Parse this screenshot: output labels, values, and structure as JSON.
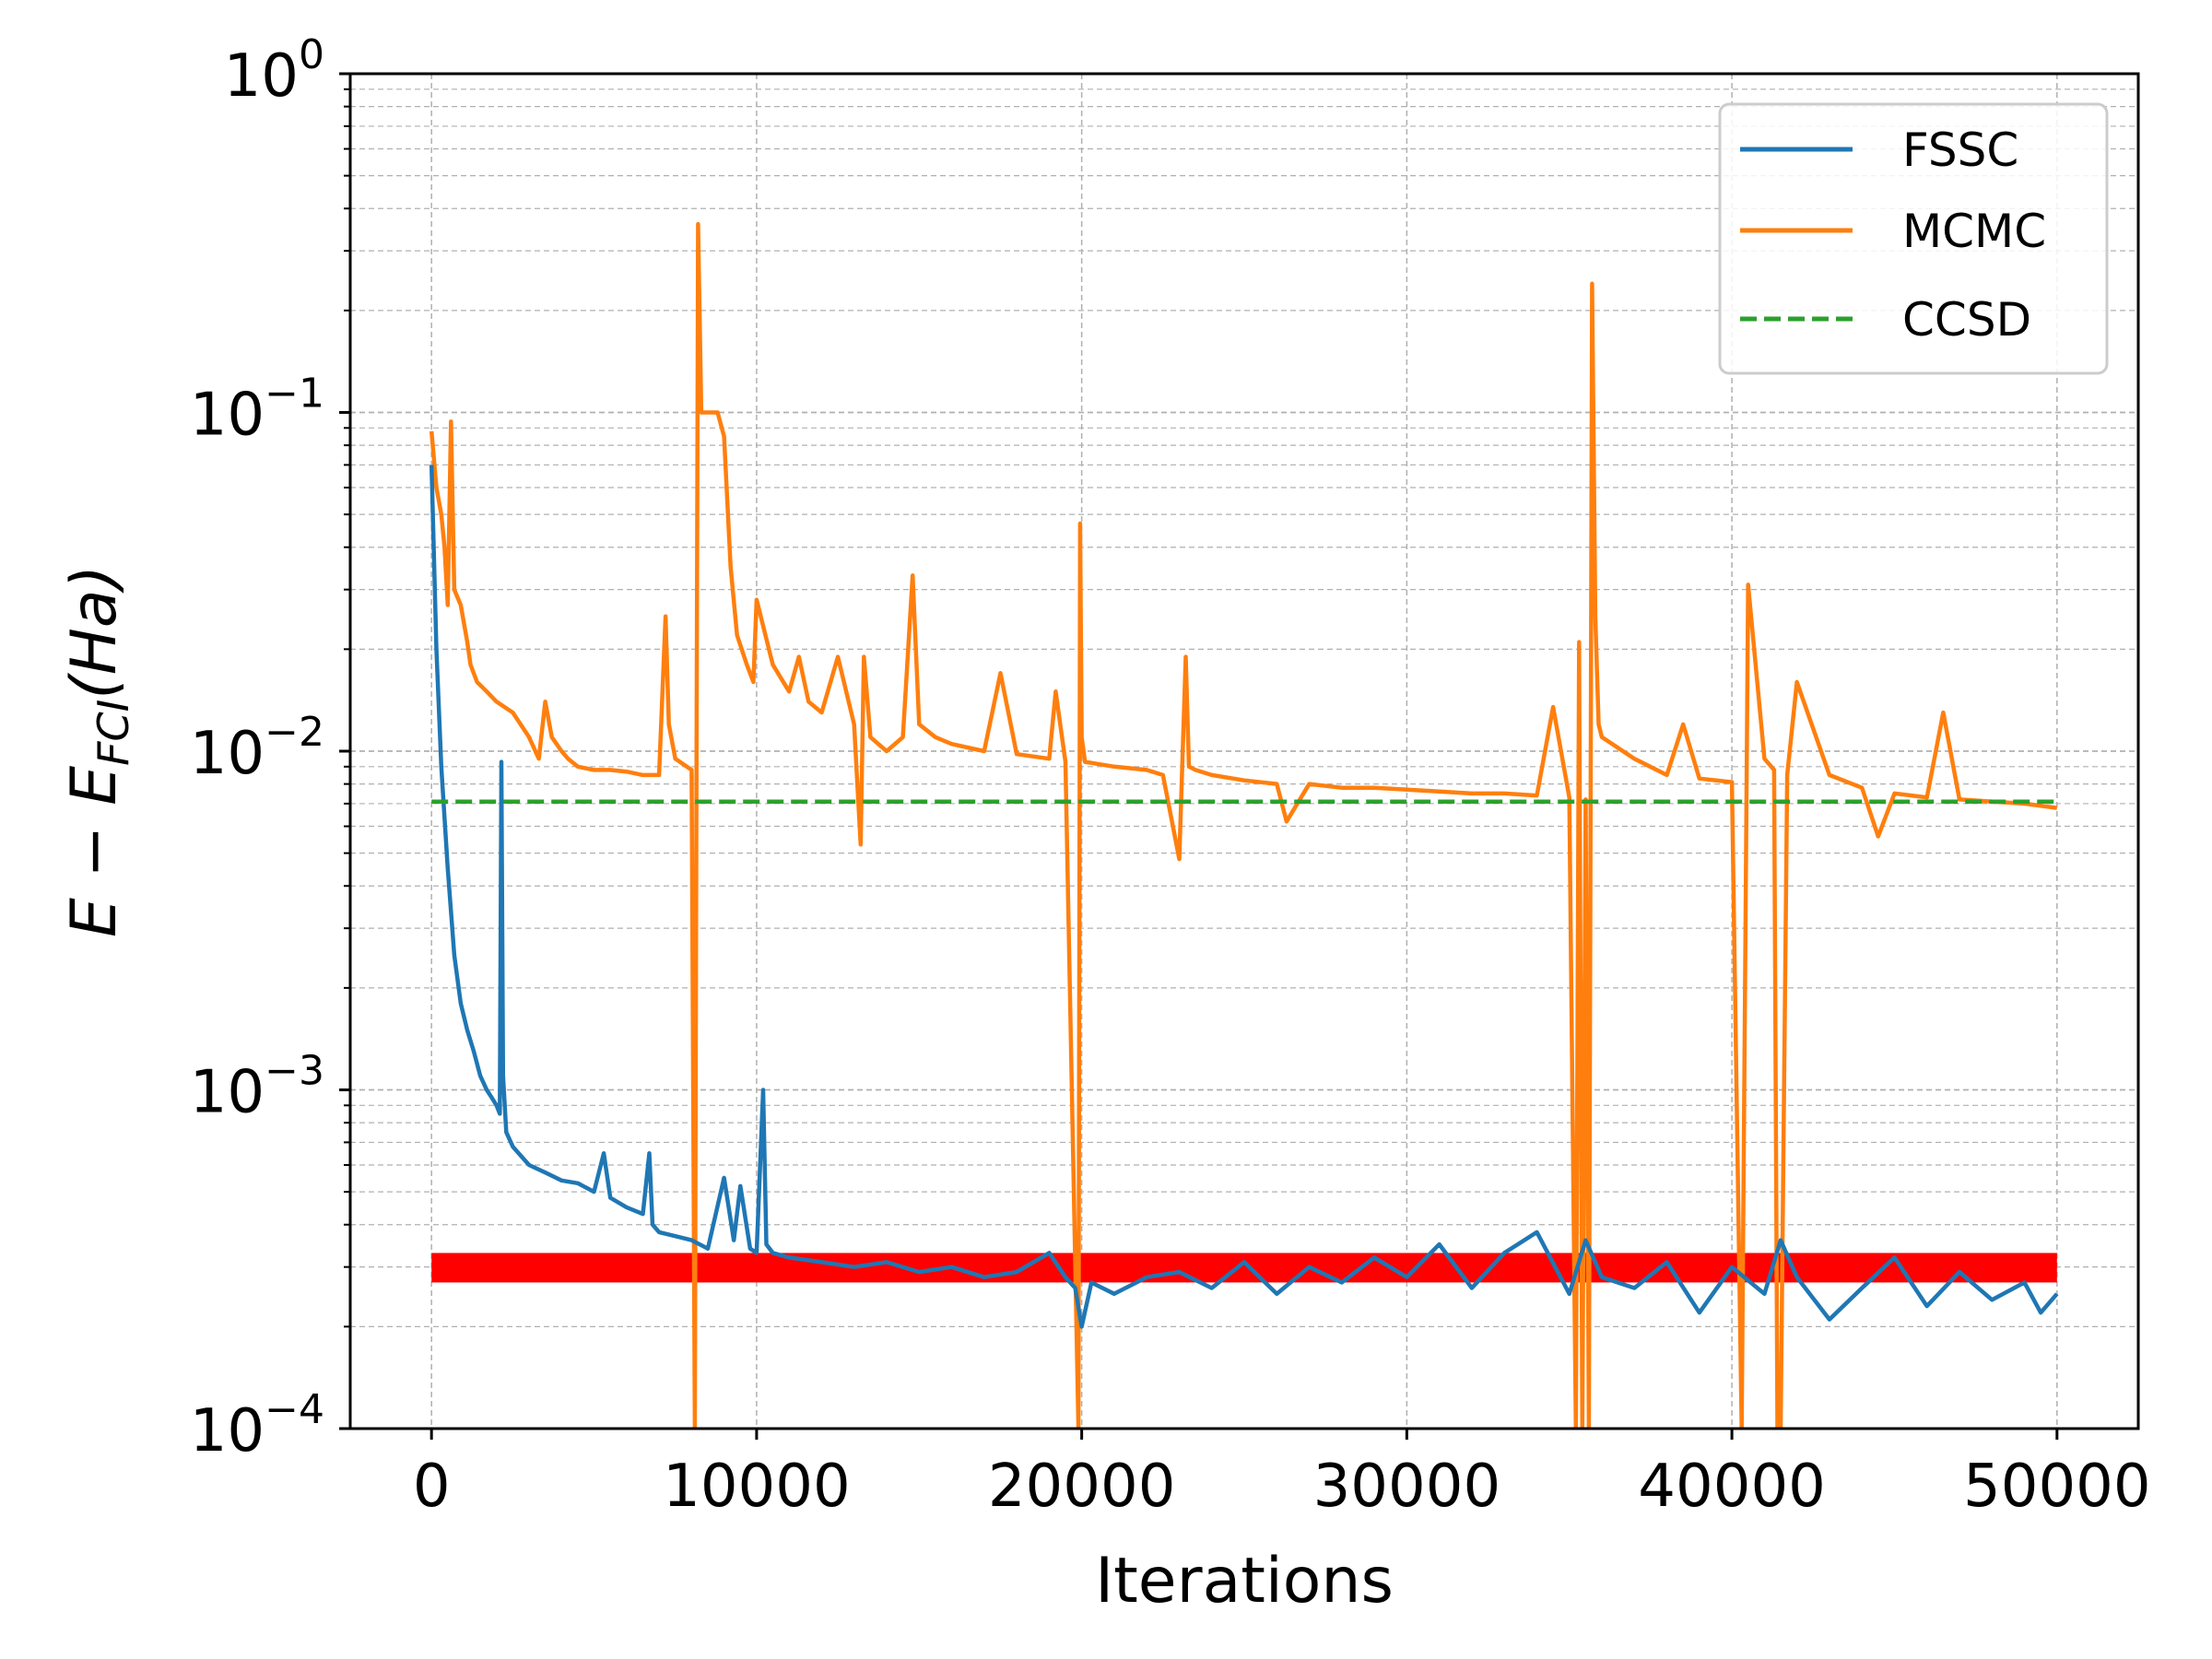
{
  "chart_data": {
    "type": "line",
    "xlabel": "Iterations",
    "ylabel_main": "E − E",
    "ylabel_sub": "FCI",
    "ylabel_unit": "(Ha)",
    "yscale": "log",
    "xlim": [
      -2500,
      52500
    ],
    "ylim": [
      0.0001,
      1
    ],
    "x_ticks": [
      0,
      10000,
      20000,
      30000,
      40000,
      50000
    ],
    "x_tick_labels": [
      "0",
      "10000",
      "20000",
      "30000",
      "40000",
      "50000"
    ],
    "y_ticks": [
      {
        "value": 1,
        "base": "10",
        "exp": "0"
      },
      {
        "value": 0.1,
        "base": "10",
        "exp": "−1"
      },
      {
        "value": 0.01,
        "base": "10",
        "exp": "−2"
      },
      {
        "value": 0.001,
        "base": "10",
        "exp": "−3"
      },
      {
        "value": 0.0001,
        "base": "10",
        "exp": "−4"
      }
    ],
    "grid": true,
    "legend_position": "top-right",
    "band": {
      "x": [
        0,
        50000
      ],
      "y": [
        0.00027,
        0.00033
      ],
      "color": "#ff0000"
    },
    "series": [
      {
        "name": "FSSC",
        "color": "#1f77b4",
        "style": "solid",
        "x": [
          0,
          150,
          300,
          500,
          700,
          900,
          1100,
          1300,
          1500,
          1700,
          1850,
          2000,
          2100,
          2150,
          2200,
          2300,
          2500,
          3000,
          3500,
          4000,
          4500,
          5000,
          5300,
          5500,
          6000,
          6500,
          6700,
          6800,
          7000,
          7500,
          8000,
          8500,
          9000,
          9300,
          9500,
          9800,
          10000,
          10200,
          10300,
          10500,
          11000,
          12000,
          13000,
          14000,
          15000,
          16000,
          17000,
          18000,
          19000,
          19500,
          19800,
          20000,
          20300,
          21000,
          22000,
          23000,
          24000,
          25000,
          26000,
          27000,
          28000,
          29000,
          30000,
          31000,
          32000,
          33000,
          34000,
          35000,
          35500,
          36000,
          37000,
          38000,
          39000,
          40000,
          41000,
          41500,
          42000,
          43000,
          44000,
          45000,
          46000,
          47000,
          48000,
          49000,
          49500,
          50000
        ],
        "y": [
          0.07,
          0.02,
          0.009,
          0.0045,
          0.0025,
          0.0018,
          0.0015,
          0.0013,
          0.0011,
          0.001,
          0.00095,
          0.0009,
          0.00085,
          0.0093,
          0.0011,
          0.00075,
          0.00068,
          0.0006,
          0.00057,
          0.00054,
          0.00053,
          0.0005,
          0.00065,
          0.00048,
          0.00045,
          0.00043,
          0.00065,
          0.0004,
          0.00038,
          0.00037,
          0.00036,
          0.00034,
          0.00055,
          0.00036,
          0.00052,
          0.00034,
          0.00033,
          0.001,
          0.00035,
          0.00033,
          0.00032,
          0.00031,
          0.0003,
          0.00031,
          0.00029,
          0.0003,
          0.00028,
          0.00029,
          0.00033,
          0.00028,
          0.00026,
          0.0002,
          0.00027,
          0.00025,
          0.00028,
          0.00029,
          0.00026,
          0.00031,
          0.00025,
          0.0003,
          0.00027,
          0.00032,
          0.00028,
          0.00035,
          0.00026,
          0.00033,
          0.00038,
          0.00025,
          0.00036,
          0.00028,
          0.00026,
          0.00031,
          0.00022,
          0.0003,
          0.00025,
          0.00036,
          0.00028,
          0.00021,
          0.00026,
          0.00032,
          0.00023,
          0.00029,
          0.00024,
          0.00027,
          0.00022,
          0.00025
        ]
      },
      {
        "name": "MCMC",
        "color": "#ff7f0e",
        "style": "solid",
        "x": [
          0,
          150,
          300,
          400,
          500,
          600,
          700,
          900,
          1100,
          1200,
          1400,
          1700,
          2000,
          2500,
          3000,
          3300,
          3500,
          3700,
          4000,
          4200,
          4500,
          5000,
          5500,
          6000,
          6500,
          7000,
          7200,
          7300,
          7500,
          8000,
          8100,
          8150,
          8200,
          8300,
          8400,
          8800,
          9000,
          9200,
          9400,
          9700,
          9900,
          10000,
          10500,
          11000,
          11300,
          11600,
          12000,
          12500,
          13000,
          13200,
          13300,
          13500,
          14000,
          14500,
          14800,
          15000,
          15500,
          16000,
          17000,
          17500,
          18000,
          19000,
          19200,
          19500,
          19900,
          19950,
          20000,
          20100,
          20400,
          21000,
          22000,
          22500,
          23000,
          23200,
          23300,
          23500,
          24000,
          25000,
          26000,
          26300,
          27000,
          28000,
          29000,
          30000,
          31000,
          32000,
          33000,
          34000,
          34500,
          35000,
          35200,
          35300,
          35400,
          35500,
          35600,
          35700,
          35800,
          35900,
          36000,
          37000,
          38000,
          38500,
          39000,
          40000,
          40300,
          40500,
          41000,
          41300,
          41400,
          41500,
          41700,
          42000,
          43000,
          44000,
          44500,
          45000,
          46000,
          46500,
          47000,
          48000,
          49000,
          50000
        ],
        "y": [
          0.088,
          0.06,
          0.05,
          0.04,
          0.027,
          0.094,
          0.03,
          0.027,
          0.021,
          0.018,
          0.016,
          0.015,
          0.014,
          0.013,
          0.011,
          0.0095,
          0.014,
          0.011,
          0.01,
          0.0095,
          0.009,
          0.0088,
          0.0088,
          0.0087,
          0.0085,
          0.0085,
          0.025,
          0.012,
          0.0095,
          0.0088,
          0.0001,
          0.0088,
          0.36,
          0.1,
          0.1,
          0.1,
          0.085,
          0.035,
          0.022,
          0.018,
          0.016,
          0.028,
          0.018,
          0.015,
          0.019,
          0.014,
          0.013,
          0.019,
          0.012,
          0.0053,
          0.019,
          0.011,
          0.01,
          0.011,
          0.033,
          0.012,
          0.011,
          0.0105,
          0.01,
          0.017,
          0.0098,
          0.0095,
          0.015,
          0.0093,
          0.0001,
          0.047,
          0.011,
          0.0093,
          0.0092,
          0.009,
          0.0088,
          0.0085,
          0.0048,
          0.019,
          0.009,
          0.0088,
          0.0085,
          0.0082,
          0.008,
          0.0062,
          0.008,
          0.0078,
          0.0078,
          0.0077,
          0.0076,
          0.0075,
          0.0075,
          0.0074,
          0.0135,
          0.0073,
          0.0001,
          0.021,
          0.0001,
          0.0072,
          0.0001,
          0.24,
          0.025,
          0.012,
          0.011,
          0.0095,
          0.0085,
          0.012,
          0.0083,
          0.0081,
          0.0001,
          0.031,
          0.0095,
          0.0088,
          0.0001,
          0.0001,
          0.0085,
          0.016,
          0.0085,
          0.0078,
          0.0056,
          0.0075,
          0.0073,
          0.013,
          0.0072,
          0.0071,
          0.007,
          0.0068
        ]
      },
      {
        "name": "CCSD",
        "color": "#2ca02c",
        "style": "dashed",
        "x": [
          0,
          50000
        ],
        "y": [
          0.0071,
          0.0071
        ]
      }
    ]
  }
}
